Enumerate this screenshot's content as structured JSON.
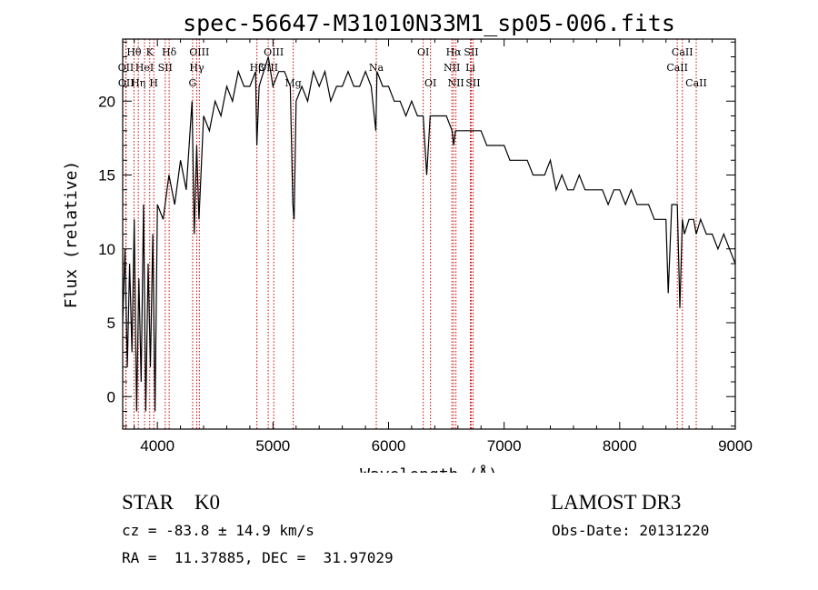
{
  "chart_data": {
    "type": "line",
    "title": "spec-56647-M31010N33M1_sp05-006.fits",
    "xlabel": "Wavelength (Å)",
    "ylabel": "Flux (relative)",
    "xlim": [
      3700,
      9000
    ],
    "ylim": [
      -2.2,
      24.2
    ],
    "x_ticks": [
      4000,
      5000,
      6000,
      7000,
      8000,
      9000
    ],
    "y_ticks": [
      0,
      5,
      10,
      15,
      20
    ],
    "grid": false,
    "line_color": "#000000",
    "marker_color": "#cc0000",
    "series": [
      {
        "name": "flux",
        "x": [
          3700,
          3720,
          3740,
          3760,
          3780,
          3800,
          3820,
          3840,
          3860,
          3880,
          3900,
          3920,
          3940,
          3960,
          3980,
          4000,
          4050,
          4100,
          4150,
          4200,
          4250,
          4300,
          4320,
          4340,
          4360,
          4400,
          4450,
          4500,
          4550,
          4600,
          4650,
          4700,
          4750,
          4800,
          4850,
          4861,
          4880,
          4920,
          4960,
          5000,
          5050,
          5100,
          5150,
          5172,
          5183,
          5200,
          5250,
          5300,
          5350,
          5400,
          5450,
          5500,
          5550,
          5600,
          5650,
          5700,
          5750,
          5800,
          5850,
          5890,
          5900,
          5950,
          6000,
          6050,
          6100,
          6150,
          6200,
          6250,
          6300,
          6330,
          6360,
          6400,
          6450,
          6500,
          6550,
          6563,
          6580,
          6600,
          6650,
          6700,
          6750,
          6800,
          6850,
          6900,
          6950,
          7000,
          7050,
          7100,
          7150,
          7200,
          7250,
          7300,
          7350,
          7400,
          7450,
          7500,
          7550,
          7600,
          7650,
          7700,
          7750,
          7800,
          7850,
          7900,
          7950,
          8000,
          8050,
          8100,
          8150,
          8200,
          8250,
          8300,
          8350,
          8400,
          8420,
          8450,
          8498,
          8520,
          8542,
          8560,
          8600,
          8640,
          8662,
          8700,
          8750,
          8800,
          8850,
          8900,
          8950,
          9000
        ],
        "y": [
          5,
          10,
          2,
          9,
          3,
          12,
          -1,
          8,
          1,
          13,
          -1,
          9,
          2,
          11,
          -1,
          13,
          12,
          15,
          13,
          16,
          14,
          20,
          11,
          17,
          12,
          19,
          18,
          20,
          19,
          21,
          20,
          22,
          21,
          21,
          22,
          17,
          21,
          22,
          23,
          21,
          22,
          22,
          21,
          13,
          12,
          20,
          21,
          20,
          22,
          21,
          22,
          20,
          21,
          21,
          22,
          21,
          21,
          22,
          21,
          18,
          22,
          21,
          21,
          20,
          20,
          19,
          20,
          19,
          19,
          15,
          19,
          19,
          19,
          19,
          18,
          17,
          18,
          18,
          18,
          18,
          18,
          18,
          17,
          17,
          17,
          17,
          16,
          16,
          16,
          16,
          15,
          15,
          15,
          16,
          14,
          15,
          14,
          14,
          15,
          14,
          14,
          14,
          14,
          13,
          14,
          14,
          13,
          14,
          13,
          13,
          13,
          12,
          12,
          12,
          7,
          13,
          13,
          6,
          12,
          11,
          12,
          12,
          11,
          12,
          11,
          11,
          10,
          11,
          10,
          9
        ]
      }
    ],
    "line_markers": [
      {
        "label": "Hθ",
        "x": 3798,
        "row": 1
      },
      {
        "label": "OII",
        "x": 3727,
        "row": 2
      },
      {
        "label": "OII",
        "x": 3729,
        "row": 3
      },
      {
        "label": "Hη",
        "x": 3835,
        "row": 3
      },
      {
        "label": "K",
        "x": 3934,
        "row": 1
      },
      {
        "label": "HeI",
        "x": 3889,
        "row": 2
      },
      {
        "label": "H",
        "x": 3969,
        "row": 3
      },
      {
        "label": "Hδ",
        "x": 4102,
        "row": 1
      },
      {
        "label": "SII",
        "x": 4068,
        "row": 2
      },
      {
        "label": "OIII",
        "x": 4363,
        "row": 1
      },
      {
        "label": "Hγ",
        "x": 4341,
        "row": 2
      },
      {
        "label": "G",
        "x": 4305,
        "row": 3
      },
      {
        "label": "OIII",
        "x": 5007,
        "row": 1
      },
      {
        "label": "OIII",
        "x": 4959,
        "row": 2
      },
      {
        "label": "Hβ",
        "x": 4861,
        "row": 2
      },
      {
        "label": "Mg",
        "x": 5175,
        "row": 3
      },
      {
        "label": "Na",
        "x": 5894,
        "row": 2
      },
      {
        "label": "OI",
        "x": 6300,
        "row": 1
      },
      {
        "label": "OI",
        "x": 6363,
        "row": 3
      },
      {
        "label": "Hα",
        "x": 6563,
        "row": 1
      },
      {
        "label": "NII",
        "x": 6548,
        "row": 2
      },
      {
        "label": "NII",
        "x": 6583,
        "row": 3
      },
      {
        "label": "SII",
        "x": 6716,
        "row": 1
      },
      {
        "label": "Li",
        "x": 6708,
        "row": 2
      },
      {
        "label": "SII",
        "x": 6731,
        "row": 3
      },
      {
        "label": "CaII",
        "x": 8542,
        "row": 1
      },
      {
        "label": "CaII",
        "x": 8498,
        "row": 2
      },
      {
        "label": "CaII",
        "x": 8662,
        "row": 3
      }
    ]
  },
  "info": {
    "class_label": "STAR    K0",
    "survey": "LAMOST DR3",
    "cz": "cz = -83.8 ± 14.9 km/s",
    "obs_date": "Obs-Date: 20131220",
    "radec": "RA =  11.37885, DEC =  31.97029"
  }
}
